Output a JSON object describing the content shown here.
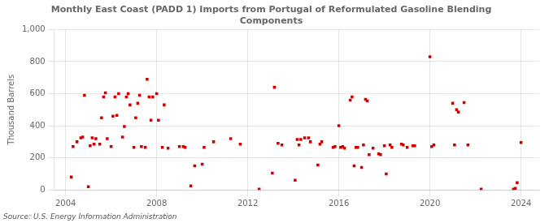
{
  "chart_data": {
    "type": "scatter",
    "title": "Monthly East Coast (PADD 1) Imports from Portugal of Reformulated Gasoline Blending\nComponents",
    "y_label": "Thousand Barrels",
    "annotations": [
      "Source: U.S. Energy Information Administration"
    ],
    "color": "#cc0000",
    "marker": "square",
    "grid": true,
    "xlim": [
      2003.5,
      2024.8
    ],
    "ylim": [
      0,
      1000
    ],
    "xticks": [
      2004,
      2008,
      2012,
      2016,
      2020,
      2024
    ],
    "yticks": [
      0,
      200,
      400,
      600,
      800,
      {
        "value": 1000,
        "label": "1,000"
      }
    ],
    "x": [
      2004.25,
      2004.33,
      2004.5,
      2004.67,
      2004.75,
      2004.83,
      2005.0,
      2005.08,
      2005.17,
      2005.25,
      2005.33,
      2005.5,
      2005.58,
      2005.67,
      2005.75,
      2005.83,
      2006.0,
      2006.08,
      2006.17,
      2006.25,
      2006.33,
      2006.5,
      2006.58,
      2006.67,
      2006.75,
      2006.83,
      2007.0,
      2007.08,
      2007.17,
      2007.25,
      2007.33,
      2007.5,
      2007.58,
      2007.67,
      2007.75,
      2007.83,
      2008.0,
      2008.08,
      2008.25,
      2008.33,
      2008.5,
      2009.0,
      2009.17,
      2009.25,
      2009.5,
      2009.67,
      2010.0,
      2010.08,
      2010.5,
      2011.25,
      2011.67,
      2012.5,
      2013.08,
      2013.17,
      2013.33,
      2013.5,
      2014.08,
      2014.17,
      2014.25,
      2014.33,
      2014.5,
      2014.67,
      2014.75,
      2015.08,
      2015.17,
      2015.25,
      2015.75,
      2015.83,
      2016.0,
      2016.08,
      2016.17,
      2016.25,
      2016.5,
      2016.58,
      2016.67,
      2016.75,
      2016.83,
      2017.0,
      2017.08,
      2017.17,
      2017.25,
      2017.33,
      2017.5,
      2017.75,
      2017.83,
      2018.0,
      2018.08,
      2018.25,
      2018.33,
      2018.75,
      2018.83,
      2019.0,
      2019.25,
      2019.33,
      2020.0,
      2020.08,
      2020.17,
      2021.0,
      2021.08,
      2021.17,
      2021.25,
      2021.5,
      2021.67,
      2022.25,
      2023.67,
      2023.75,
      2023.83,
      2024.0
    ],
    "values": [
      80,
      270,
      300,
      325,
      330,
      590,
      20,
      275,
      325,
      285,
      320,
      285,
      450,
      580,
      605,
      320,
      270,
      460,
      580,
      465,
      600,
      330,
      395,
      580,
      600,
      530,
      265,
      450,
      540,
      590,
      270,
      265,
      690,
      580,
      435,
      580,
      600,
      435,
      265,
      530,
      260,
      270,
      270,
      265,
      25,
      150,
      160,
      265,
      300,
      320,
      285,
      5,
      105,
      640,
      290,
      280,
      60,
      315,
      280,
      315,
      325,
      325,
      300,
      155,
      285,
      300,
      265,
      270,
      400,
      265,
      270,
      260,
      560,
      580,
      150,
      265,
      265,
      140,
      280,
      565,
      555,
      220,
      260,
      225,
      220,
      275,
      100,
      280,
      265,
      285,
      280,
      265,
      275,
      275,
      830,
      270,
      280,
      540,
      280,
      500,
      485,
      545,
      280,
      5,
      5,
      10,
      45,
      295
    ]
  }
}
